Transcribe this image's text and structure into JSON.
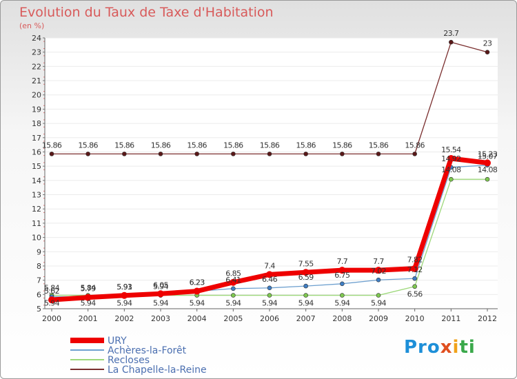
{
  "title": "Evolution du Taux de Taxe d'Habitation",
  "subtitle": "(en %)",
  "logo": {
    "text": "Proxiti",
    "parts": [
      "Pro",
      "x",
      "i",
      "ti"
    ]
  },
  "chart_data": {
    "type": "line",
    "x": [
      "2000",
      "2001",
      "2002",
      "2003",
      "2004",
      "2005",
      "2006",
      "2007",
      "2008",
      "2009",
      "2010",
      "2011",
      "2012"
    ],
    "ylim": [
      5,
      24
    ],
    "yticks": [
      5,
      6,
      7,
      8,
      9,
      10,
      11,
      12,
      13,
      14,
      15,
      16,
      17,
      18,
      19,
      20,
      21,
      22,
      23,
      24
    ],
    "series": [
      {
        "name": "URY",
        "color": "#ee0000",
        "width": 7,
        "marker_fill": "#ee0000",
        "values": [
          5.62,
          5.79,
          5.93,
          6.05,
          6.23,
          6.85,
          7.4,
          7.55,
          7.7,
          7.7,
          7.82,
          15.54,
          15.23
        ],
        "labels": [
          "5.62",
          "5.79",
          "5.93",
          "6.05",
          "6.23",
          "6.85",
          "7.4",
          "7.55",
          "7.7",
          "7.7",
          "7.82",
          "15.54",
          "15.23"
        ]
      },
      {
        "name": "Achères-la-Forêt",
        "color": "#6ea0cf",
        "width": 1.3,
        "marker_fill": "#3f7ec4",
        "values": [
          5.84,
          5.84,
          5.91,
          5.94,
          6.23,
          6.41,
          6.46,
          6.59,
          6.75,
          7.02,
          7.12,
          14.92,
          15.07
        ],
        "labels": [
          "5.84",
          "5.84",
          "5.91",
          "5.94",
          "6.23",
          "6.41",
          "6.46",
          "6.59",
          "6.75",
          "7.02",
          "7.12",
          "14.92",
          "15.07"
        ]
      },
      {
        "name": "Recloses",
        "color": "#9dd87a",
        "width": 1.3,
        "marker_fill": "#7ec850",
        "values": [
          5.94,
          5.94,
          5.94,
          5.94,
          5.94,
          5.94,
          5.94,
          5.94,
          5.94,
          5.94,
          6.56,
          14.08,
          14.08
        ],
        "labels": [
          "5.94",
          "5.94",
          "5.94",
          "5.94",
          "5.94",
          "5.94",
          "5.94",
          "5.94",
          "5.94",
          "5.94",
          "6.56",
          "14.08",
          "14.08"
        ]
      },
      {
        "name": "La Chapelle-la-Reine",
        "color": "#7a2e2e",
        "width": 1.3,
        "marker_fill": "#5a1818",
        "values": [
          15.86,
          15.86,
          15.86,
          15.86,
          15.86,
          15.86,
          15.86,
          15.86,
          15.86,
          15.86,
          15.86,
          23.7,
          23
        ],
        "labels": [
          "15.86",
          "15.86",
          "15.86",
          "15.86",
          "15.86",
          "15.86",
          "15.86",
          "15.86",
          "15.86",
          "15.86",
          "15.86",
          "23.7",
          "23"
        ]
      }
    ],
    "legend_position": "bottom-left"
  }
}
